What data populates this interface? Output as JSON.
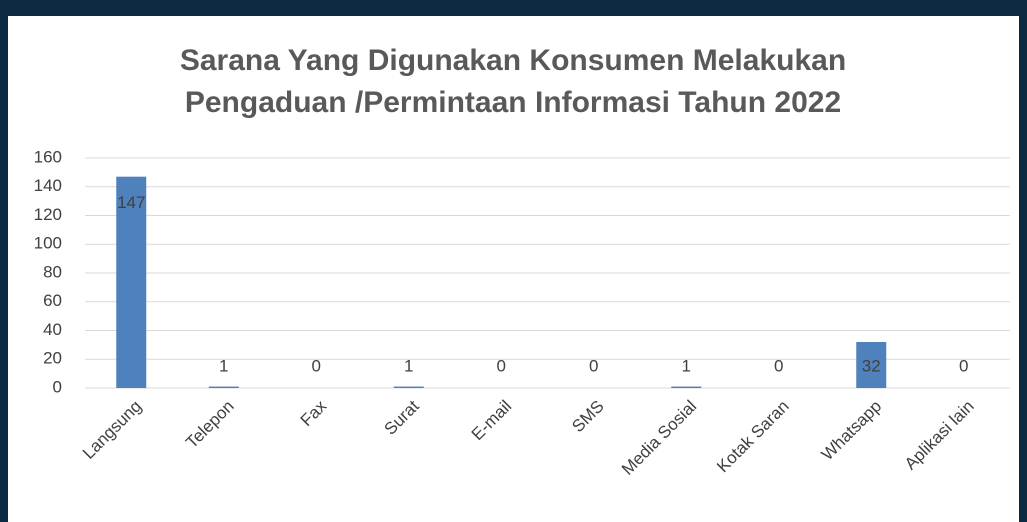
{
  "chart_data": {
    "type": "bar",
    "title": [
      "Sarana Yang Digunakan Konsumen Melakukan",
      "Pengaduan /Permintaan Informasi Tahun 2022"
    ],
    "categories": [
      "Langsung",
      "Telepon",
      "Fax",
      "Surat",
      "E-mail",
      "SMS",
      "Media Sosial",
      "Kotak Saran",
      "Whatsapp",
      "Aplikasi lain"
    ],
    "values": [
      147,
      1,
      0,
      1,
      0,
      0,
      1,
      0,
      32,
      0
    ],
    "color": "#4f81bd",
    "ylim": [
      0,
      160
    ],
    "yticks": [
      0,
      20,
      40,
      60,
      80,
      100,
      120,
      140,
      160
    ],
    "grid": true
  }
}
